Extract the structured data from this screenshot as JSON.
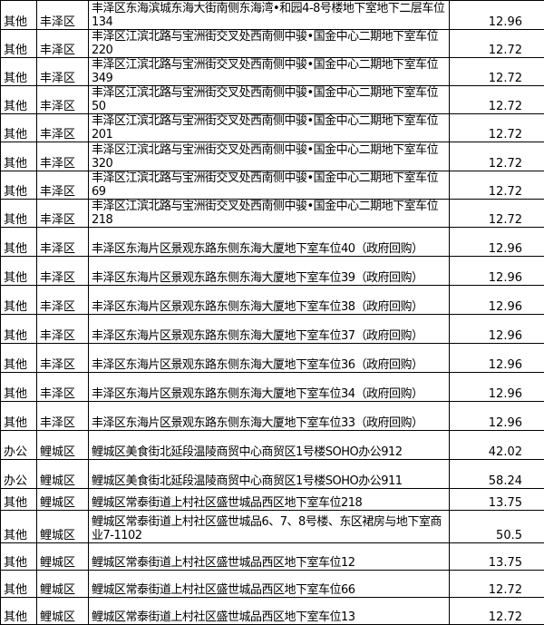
{
  "table": {
    "rows": [
      [
        "其他",
        "丰泽区",
        "丰泽区东海滨城东海大街南侧东海湾•和园4-8号楼地下室地下二层车位134",
        12.96
      ],
      [
        "其他",
        "丰泽区",
        "丰泽区江滨北路与宝洲街交叉处西南侧中骏•国金中心二期地下室车位220",
        12.72
      ],
      [
        "其他",
        "丰泽区",
        "丰泽区江滨北路与宝洲街交叉处西南侧中骏•国金中心二期地下室车位349",
        12.72
      ],
      [
        "其他",
        "丰泽区",
        "丰泽区江滨北路与宝洲街交叉处西南侧中骏•国金中心二期地下室车位50",
        12.72
      ],
      [
        "其他",
        "丰泽区",
        "丰泽区江滨北路与宝洲街交叉处西南侧中骏•国金中心二期地下室车位201",
        12.72
      ],
      [
        "其他",
        "丰泽区",
        "丰泽区江滨北路与宝洲街交叉处西南侧中骏•国金中心二期地下室车位320",
        12.72
      ],
      [
        "其他",
        "丰泽区",
        "丰泽区江滨北路与宝洲街交叉处西南侧中骏•国金中心二期地下室车位69",
        12.72
      ],
      [
        "其他",
        "丰泽区",
        "丰泽区江滨北路与宝洲街交叉处西南侧中骏•国金中心二期地下室车位218",
        12.72
      ],
      [
        "其他",
        "丰泽区",
        "丰泽区东海片区景观东路东侧东海大厦地下室车位40（政府回购）",
        12.96
      ],
      [
        "其他",
        "丰泽区",
        "丰泽区东海片区景观东路东侧东海大厦地下室车位39（政府回购）",
        12.96
      ],
      [
        "其他",
        "丰泽区",
        "丰泽区东海片区景观东路东侧东海大厦地下室车位38（政府回购）",
        12.96
      ],
      [
        "其他",
        "丰泽区",
        "丰泽区东海片区景观东路东侧东海大厦地下室车位37（政府回购）",
        12.96
      ],
      [
        "其他",
        "丰泽区",
        "丰泽区东海片区景观东路东侧东海大厦地下室车位36（政府回购）",
        12.96
      ],
      [
        "其他",
        "丰泽区",
        "丰泽区东海片区景观东路东侧东海大厦地下室车位34（政府回购）",
        12.96
      ],
      [
        "其他",
        "丰泽区",
        "丰泽区东海片区景观东路东侧东海大厦地下室车位33（政府回购）",
        12.96
      ],
      [
        "办公",
        "鲤城区",
        "鲤城区美食街北延段温陵商贸中心商贸区1号楼SOHO办公912",
        42.02
      ],
      [
        "办公",
        "鲤城区",
        "鲤城区美食街北延段温陵商贸中心商贸区1号楼SOHO办公911",
        58.24
      ],
      [
        "其他",
        "鲤城区",
        "鲤城区常泰街道上村社区盛世城品西区地下室车位218",
        13.75
      ],
      [
        "其他",
        "鲤城区",
        "鲤城区常泰街道上村社区盛世城品6、7、8号楼、东区裙房与地下室商业7-1102",
        50.5
      ],
      [
        "其他",
        "鲤城区",
        "鲤城区常泰街道上村社区盛世城品西区地下室车位12",
        13.75
      ],
      [
        "其他",
        "鲤城区",
        "鲤城区常泰街道上村社区盛世城品西区地下室车位66",
        12.72
      ],
      [
        "其他",
        "鲤城区",
        "鲤城区常泰街道上村社区盛世城品西区地下室车位13",
        12.72
      ]
    ]
  }
}
